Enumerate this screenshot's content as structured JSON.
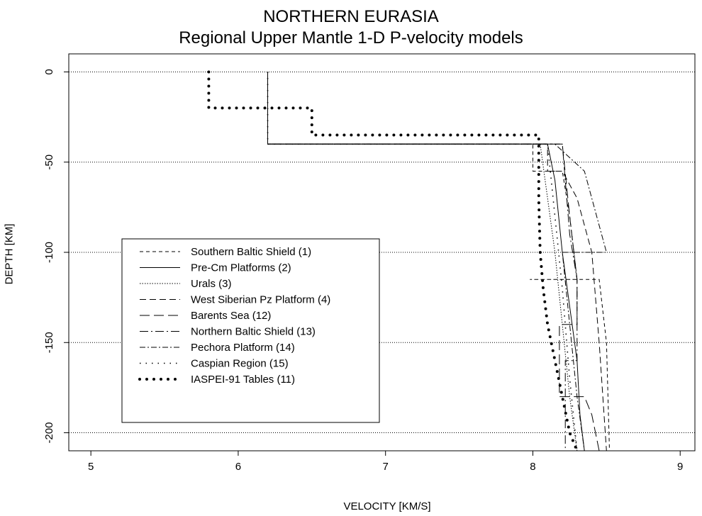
{
  "chart_data": {
    "type": "line",
    "title": "NORTHERN EURASIA",
    "subtitle": "Regional Upper Mantle 1-D P-velocity models",
    "xlabel": "VELOCITY  [KM/S]",
    "ylabel": "DEPTH  [KM]",
    "xlim": [
      4.85,
      9.1
    ],
    "ylim": [
      -210,
      10
    ],
    "xticks": [
      {
        "value": 5,
        "label": "5"
      },
      {
        "value": 6,
        "label": "6"
      },
      {
        "value": 7,
        "label": "7"
      },
      {
        "value": 8,
        "label": "8"
      },
      {
        "value": 9,
        "label": "9"
      }
    ],
    "yticks": [
      {
        "value": 0,
        "label": "0"
      },
      {
        "value": -50,
        "label": "-50"
      },
      {
        "value": -100,
        "label": "-100"
      },
      {
        "value": -150,
        "label": "-150"
      },
      {
        "value": -200,
        "label": "-200"
      }
    ],
    "grid": "horizontal dotted lines at y ticks",
    "legend_position": "center-left",
    "series": [
      {
        "name": "Southern Baltic Shield (1)",
        "dash": "5,4",
        "width": 1,
        "x": [
          6.2,
          6.2,
          8.0,
          8.0,
          8.2,
          8.25,
          8.3,
          7.98,
          7.98,
          8.45,
          8.5,
          8.52
        ],
        "y": [
          0,
          -40,
          -40,
          -55,
          -55,
          -80,
          -115,
          -115,
          -115,
          -115,
          -150,
          -210
        ]
      },
      {
        "name": "Pre-Cm Platforms (2)",
        "dash": "",
        "width": 1,
        "x": [
          6.2,
          6.2,
          8.1,
          8.15,
          8.2,
          8.25,
          8.3,
          8.32,
          8.35
        ],
        "y": [
          0,
          -40,
          -40,
          -60,
          -100,
          -130,
          -160,
          -190,
          -210
        ]
      },
      {
        "name": "Urals (3)",
        "dash": "1.5,2",
        "width": 1,
        "x": [
          6.2,
          6.2,
          8.05,
          8.1,
          8.15,
          8.2,
          8.25,
          8.3
        ],
        "y": [
          0,
          -40,
          -40,
          -70,
          -100,
          -140,
          -180,
          -210
        ]
      },
      {
        "name": "West Siberian Pz Platform (4)",
        "dash": "9,5",
        "width": 1,
        "x": [
          6.2,
          6.2,
          8.1,
          8.1,
          8.2,
          8.3,
          8.4,
          8.45,
          8.5
        ],
        "y": [
          0,
          -40,
          -40,
          -55,
          -55,
          -70,
          -100,
          -150,
          -210
        ]
      },
      {
        "name": "Barents Sea (12)",
        "dash": "14,6",
        "width": 1,
        "x": [
          6.2,
          6.2,
          8.2,
          8.25,
          8.3,
          8.3,
          8.18,
          8.18,
          8.35,
          8.4,
          8.45
        ],
        "y": [
          0,
          -40,
          -40,
          -80,
          -115,
          -140,
          -140,
          -180,
          -180,
          -190,
          -210
        ]
      },
      {
        "name": "Northern Baltic Shield (13)",
        "dash": "12,4,2,4",
        "width": 1,
        "x": [
          6.2,
          6.2,
          8.2,
          8.25,
          8.3,
          8.3,
          8.22,
          8.22,
          8.35
        ],
        "y": [
          0,
          -40,
          -40,
          -90,
          -115,
          -160,
          -160,
          -210,
          -210
        ]
      },
      {
        "name": "Pechora Platform (14)",
        "dash": "8,3,2,3",
        "width": 1,
        "x": [
          6.2,
          6.2,
          8.15,
          8.35,
          8.5,
          8.4,
          8.2,
          8.25,
          8.3,
          8.35
        ],
        "y": [
          0,
          -40,
          -40,
          -55,
          -100,
          -100,
          -100,
          -140,
          -180,
          -210
        ]
      },
      {
        "name": "Caspian Region (15)",
        "dash": "1.5,7",
        "width": 1.6,
        "x": [
          6.2,
          6.2,
          8.1,
          8.15,
          8.2,
          8.25,
          8.3
        ],
        "y": [
          0,
          -40,
          -40,
          -80,
          -120,
          -170,
          -210
        ]
      },
      {
        "name": "IASPEI-91 Tables (11)",
        "dash": "0,10",
        "width": 4,
        "x": [
          5.8,
          5.8,
          6.5,
          6.5,
          8.04,
          8.04,
          8.05,
          8.07,
          8.1,
          8.15,
          8.2,
          8.25,
          8.3
        ],
        "y": [
          0,
          -20,
          -20,
          -35,
          -35,
          -71,
          -100,
          -120,
          -140,
          -160,
          -180,
          -200,
          -210
        ]
      }
    ]
  }
}
